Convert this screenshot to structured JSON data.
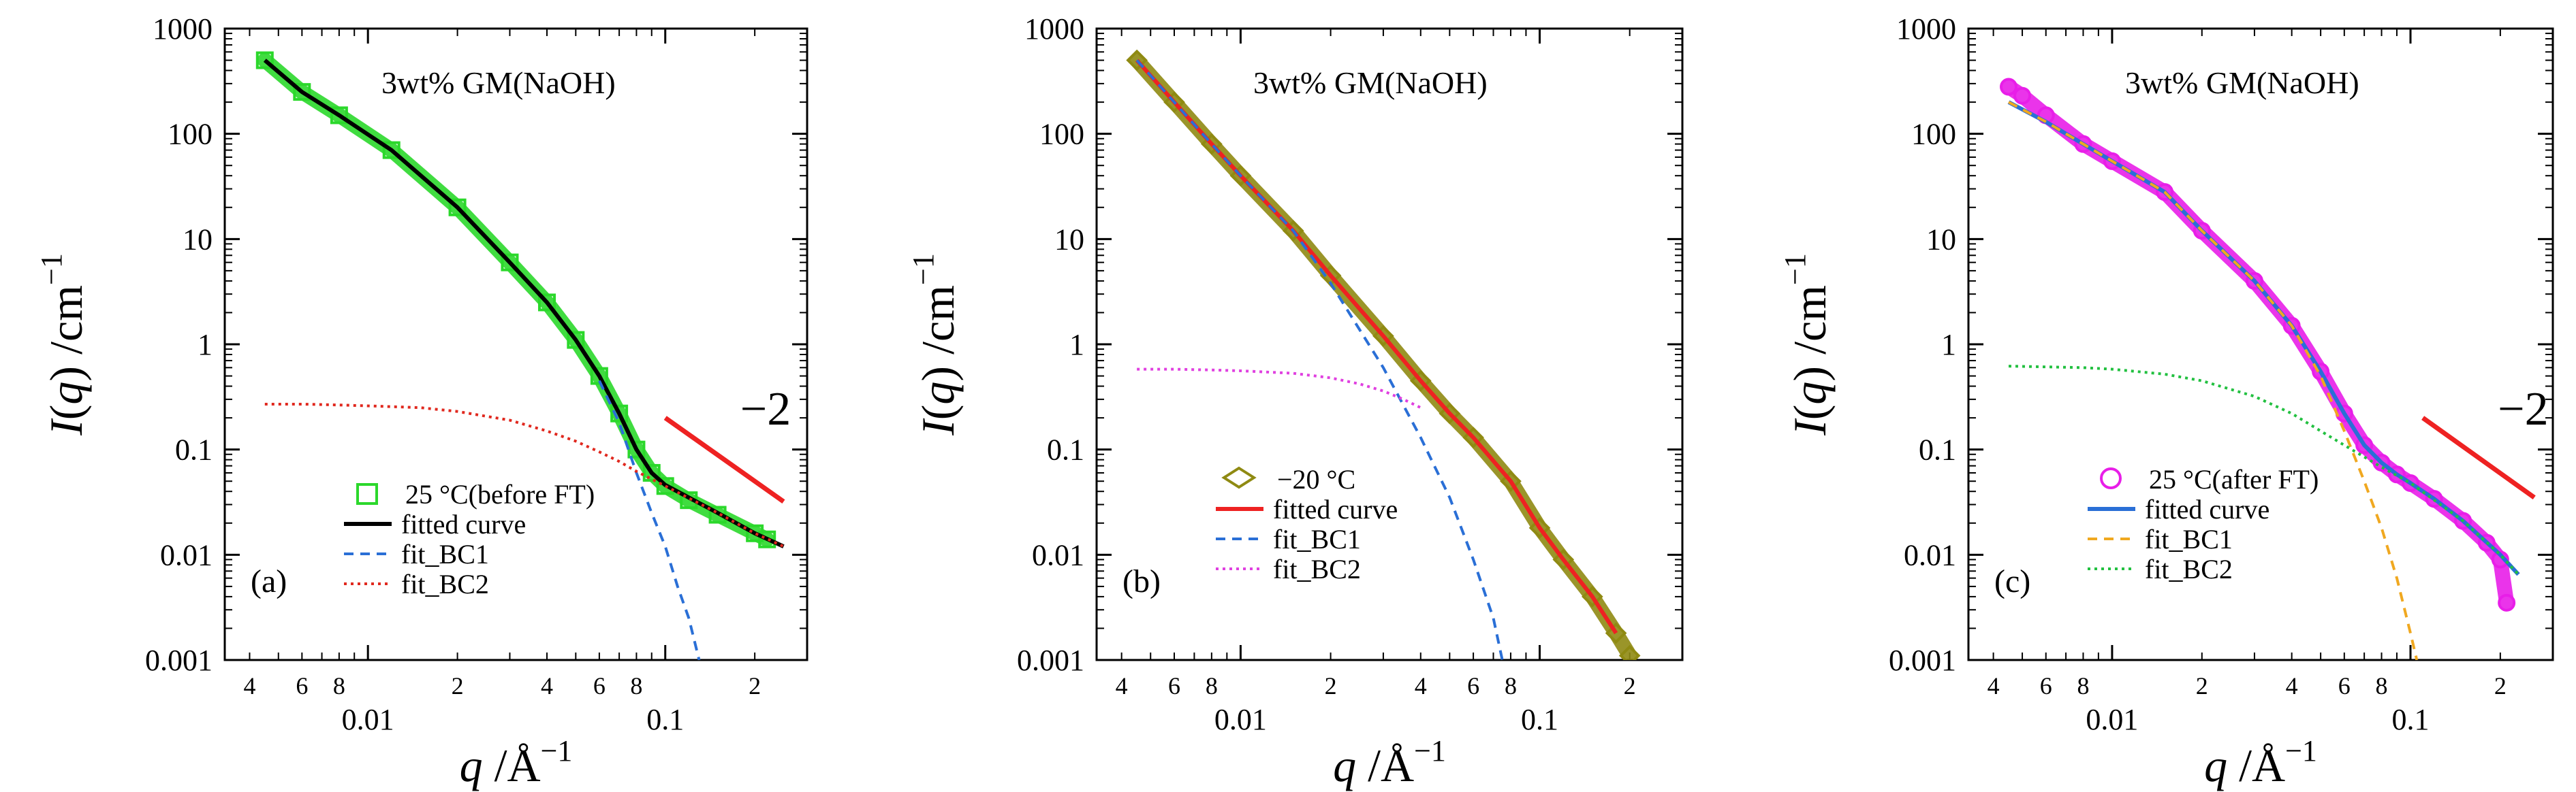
{
  "figure": {
    "panels": [
      {
        "letter": "(a)",
        "title": "3wt% GM(NaOH)",
        "ylabel_main": "I",
        "ylabel_q": "q",
        "ylabel_unit": " /cm",
        "ylabel_exp": "−1",
        "xlabel_q": "q",
        "xlabel_unit": " /Å",
        "xlabel_exp": "−1",
        "slope_label": "−2",
        "legend": [
          {
            "label": "25 °C(before FT)",
            "kind": "marker-square",
            "color": "#2bd82b"
          },
          {
            "label": "fitted curve",
            "kind": "line",
            "color": "#000000"
          },
          {
            "label": "fit_BC1",
            "kind": "dash",
            "color": "#2a6fd6"
          },
          {
            "label": "fit_BC2",
            "kind": "dot",
            "color": "#e0281e"
          }
        ]
      },
      {
        "letter": "(b)",
        "title": "3wt% GM(NaOH)",
        "ylabel_main": "I",
        "ylabel_q": "q",
        "ylabel_unit": " /cm",
        "ylabel_exp": "−1",
        "xlabel_q": "q",
        "xlabel_unit": " /Å",
        "xlabel_exp": "−1",
        "slope_label": "",
        "legend": [
          {
            "label": "−20 °C",
            "kind": "marker-diamond",
            "color": "#8f8a12"
          },
          {
            "label": "fitted curve",
            "kind": "line",
            "color": "#ee2222"
          },
          {
            "label": "fit_BC1",
            "kind": "dash",
            "color": "#2a6fd6"
          },
          {
            "label": "fit_BC2",
            "kind": "dot",
            "color": "#e040e0"
          }
        ]
      },
      {
        "letter": "(c)",
        "title": "3wt% GM(NaOH)",
        "ylabel_main": "I",
        "ylabel_q": "q",
        "ylabel_unit": " /cm",
        "ylabel_exp": "−1",
        "xlabel_q": "q",
        "xlabel_unit": " /Å",
        "xlabel_exp": "−1",
        "slope_label": "−2",
        "legend": [
          {
            "label": "25 °C(after FT)",
            "kind": "marker-circle",
            "color": "#e81ee8"
          },
          {
            "label": "fitted curve",
            "kind": "line",
            "color": "#2a6fd6"
          },
          {
            "label": "fit_BC1",
            "kind": "dash",
            "color": "#f0a820"
          },
          {
            "label": "fit_BC2",
            "kind": "dot",
            "color": "#22c040"
          }
        ]
      }
    ]
  },
  "chart_data": [
    {
      "type": "scatter",
      "title": "3wt% GM(NaOH)",
      "xlabel": "q /Å−1",
      "ylabel": "I(q) /cm−1",
      "xscale": "log",
      "yscale": "log",
      "xlim": [
        0.0033,
        0.3
      ],
      "ylim": [
        0.001,
        1000
      ],
      "x_major_ticks": [
        0.01,
        0.1
      ],
      "x_major_labels": [
        "0.01",
        "0.1"
      ],
      "x_minor_labels": [
        {
          "v": 0.004,
          "t": "4"
        },
        {
          "v": 0.006,
          "t": "6"
        },
        {
          "v": 0.008,
          "t": "8"
        },
        {
          "v": 0.02,
          "t": "2"
        },
        {
          "v": 0.04,
          "t": "4"
        },
        {
          "v": 0.06,
          "t": "6"
        },
        {
          "v": 0.08,
          "t": "8"
        },
        {
          "v": 0.2,
          "t": "2"
        }
      ],
      "y_ticks": [
        0.001,
        0.01,
        0.1,
        1,
        10,
        100,
        1000
      ],
      "y_tick_labels": [
        "0.001",
        "0.01",
        "0.1",
        "1",
        "10",
        "100",
        "1000"
      ],
      "series": [
        {
          "name": "25 °C(before FT)",
          "style": "marker-square",
          "color": "#2bd82b",
          "x": [
            0.0045,
            0.006,
            0.008,
            0.012,
            0.02,
            0.03,
            0.04,
            0.05,
            0.06,
            0.07,
            0.08,
            0.09,
            0.1,
            0.12,
            0.15,
            0.2,
            0.22
          ],
          "y": [
            500,
            250,
            150,
            70,
            20,
            6,
            2.5,
            1.1,
            0.5,
            0.22,
            0.1,
            0.06,
            0.045,
            0.033,
            0.024,
            0.016,
            0.014
          ]
        },
        {
          "name": "fitted curve",
          "style": "line",
          "color": "#000000",
          "x": [
            0.0045,
            0.006,
            0.008,
            0.012,
            0.02,
            0.03,
            0.04,
            0.05,
            0.06,
            0.07,
            0.08,
            0.09,
            0.1,
            0.15,
            0.2,
            0.25
          ],
          "y": [
            500,
            250,
            150,
            70,
            20,
            6,
            2.5,
            1.1,
            0.5,
            0.22,
            0.1,
            0.06,
            0.046,
            0.025,
            0.016,
            0.012
          ]
        },
        {
          "name": "fit_BC1",
          "style": "dash",
          "color": "#2a6fd6",
          "x": [
            0.06,
            0.07,
            0.08,
            0.09,
            0.1,
            0.11,
            0.12,
            0.13
          ],
          "y": [
            0.45,
            0.18,
            0.06,
            0.025,
            0.012,
            0.005,
            0.0025,
            0.001
          ]
        },
        {
          "name": "fit_BC2",
          "style": "dot",
          "color": "#e0281e",
          "x": [
            0.0045,
            0.006,
            0.008,
            0.01,
            0.015,
            0.02,
            0.03,
            0.04,
            0.05,
            0.06,
            0.07,
            0.08,
            0.1,
            0.15,
            0.2,
            0.25
          ],
          "y": [
            0.27,
            0.27,
            0.265,
            0.26,
            0.25,
            0.23,
            0.19,
            0.15,
            0.12,
            0.095,
            0.077,
            0.062,
            0.045,
            0.025,
            0.016,
            0.012
          ]
        },
        {
          "name": "slope −2 guide",
          "style": "slope",
          "color": "#ee2222",
          "x": [
            0.1,
            0.25
          ],
          "y": [
            0.2,
            0.032
          ]
        }
      ]
    },
    {
      "type": "scatter",
      "title": "3wt% GM(NaOH)",
      "xlabel": "q /Å−1",
      "ylabel": "I(q) /cm−1",
      "xscale": "log",
      "yscale": "log",
      "xlim": [
        0.0033,
        0.3
      ],
      "ylim": [
        0.001,
        1000
      ],
      "x_major_ticks": [
        0.01,
        0.1
      ],
      "x_major_labels": [
        "0.01",
        "0.1"
      ],
      "x_minor_labels": [
        {
          "v": 0.004,
          "t": "4"
        },
        {
          "v": 0.006,
          "t": "6"
        },
        {
          "v": 0.008,
          "t": "8"
        },
        {
          "v": 0.02,
          "t": "2"
        },
        {
          "v": 0.04,
          "t": "4"
        },
        {
          "v": 0.06,
          "t": "6"
        },
        {
          "v": 0.08,
          "t": "8"
        },
        {
          "v": 0.2,
          "t": "2"
        }
      ],
      "y_ticks": [
        0.001,
        0.01,
        0.1,
        1,
        10,
        100,
        1000
      ],
      "y_tick_labels": [
        "0.001",
        "0.01",
        "0.1",
        "1",
        "10",
        "100",
        "1000"
      ],
      "series": [
        {
          "name": "−20 °C",
          "style": "marker-diamond",
          "color": "#8f8a12",
          "x": [
            0.0045,
            0.006,
            0.008,
            0.01,
            0.015,
            0.02,
            0.03,
            0.04,
            0.05,
            0.06,
            0.08,
            0.1,
            0.12,
            0.15,
            0.18,
            0.2
          ],
          "y": [
            500,
            200,
            80,
            40,
            12,
            4.5,
            1.2,
            0.45,
            0.22,
            0.13,
            0.05,
            0.018,
            0.009,
            0.004,
            0.0018,
            0.0011
          ]
        },
        {
          "name": "fitted curve",
          "style": "line",
          "color": "#ee2222",
          "x": [
            0.0045,
            0.006,
            0.008,
            0.01,
            0.015,
            0.02,
            0.03,
            0.04,
            0.05,
            0.06,
            0.08,
            0.1,
            0.12,
            0.15,
            0.18
          ],
          "y": [
            500,
            200,
            80,
            40,
            12,
            4.5,
            1.2,
            0.45,
            0.22,
            0.13,
            0.05,
            0.018,
            0.009,
            0.004,
            0.0018
          ]
        },
        {
          "name": "fit_BC1",
          "style": "dash",
          "color": "#2a6fd6",
          "x": [
            0.0045,
            0.006,
            0.008,
            0.01,
            0.015,
            0.02,
            0.03,
            0.04,
            0.05,
            0.06,
            0.07,
            0.075
          ],
          "y": [
            500,
            200,
            80,
            40,
            12,
            3.8,
            0.6,
            0.13,
            0.035,
            0.009,
            0.0025,
            0.001
          ]
        },
        {
          "name": "fit_BC2",
          "style": "dot",
          "color": "#e040e0",
          "x": [
            0.0045,
            0.006,
            0.008,
            0.01,
            0.015,
            0.02,
            0.025,
            0.03,
            0.035,
            0.04
          ],
          "y": [
            0.58,
            0.58,
            0.57,
            0.56,
            0.53,
            0.48,
            0.42,
            0.36,
            0.3,
            0.25
          ]
        }
      ]
    },
    {
      "type": "scatter",
      "title": "3wt% GM(NaOH)",
      "xlabel": "q /Å−1",
      "ylabel": "I(q) /cm−1",
      "xscale": "log",
      "yscale": "log",
      "xlim": [
        0.0033,
        0.3
      ],
      "ylim": [
        0.001,
        1000
      ],
      "x_major_ticks": [
        0.01,
        0.1
      ],
      "x_major_labels": [
        "0.01",
        "0.1"
      ],
      "x_minor_labels": [
        {
          "v": 0.004,
          "t": "4"
        },
        {
          "v": 0.006,
          "t": "6"
        },
        {
          "v": 0.008,
          "t": "8"
        },
        {
          "v": 0.02,
          "t": "2"
        },
        {
          "v": 0.04,
          "t": "4"
        },
        {
          "v": 0.06,
          "t": "6"
        },
        {
          "v": 0.08,
          "t": "8"
        },
        {
          "v": 0.2,
          "t": "2"
        }
      ],
      "y_ticks": [
        0.001,
        0.01,
        0.1,
        1,
        10,
        100,
        1000
      ],
      "y_tick_labels": [
        "0.001",
        "0.01",
        "0.1",
        "1",
        "10",
        "100",
        "1000"
      ],
      "series": [
        {
          "name": "25 °C(after FT)",
          "style": "marker-circle",
          "color": "#e81ee8",
          "x": [
            0.0045,
            0.005,
            0.006,
            0.008,
            0.01,
            0.015,
            0.02,
            0.03,
            0.04,
            0.05,
            0.06,
            0.07,
            0.08,
            0.09,
            0.1,
            0.12,
            0.15,
            0.18,
            0.2,
            0.21
          ],
          "y": [
            280,
            230,
            150,
            80,
            55,
            28,
            12,
            4,
            1.5,
            0.55,
            0.22,
            0.11,
            0.075,
            0.058,
            0.048,
            0.034,
            0.021,
            0.013,
            0.009,
            0.0035
          ]
        },
        {
          "name": "fitted curve",
          "style": "line",
          "color": "#2a6fd6",
          "x": [
            0.0045,
            0.006,
            0.008,
            0.01,
            0.015,
            0.02,
            0.03,
            0.04,
            0.05,
            0.06,
            0.07,
            0.08,
            0.09,
            0.1,
            0.12,
            0.15,
            0.2,
            0.23
          ],
          "y": [
            200,
            130,
            80,
            55,
            28,
            12,
            4,
            1.5,
            0.55,
            0.22,
            0.11,
            0.075,
            0.058,
            0.048,
            0.034,
            0.021,
            0.01,
            0.0065
          ]
        },
        {
          "name": "fit_BC1",
          "style": "dash",
          "color": "#f0a820",
          "x": [
            0.0045,
            0.006,
            0.008,
            0.01,
            0.015,
            0.02,
            0.03,
            0.04,
            0.05,
            0.06,
            0.07,
            0.08,
            0.09,
            0.1,
            0.105
          ],
          "y": [
            200,
            130,
            80,
            55,
            28,
            12,
            4,
            1.5,
            0.5,
            0.15,
            0.05,
            0.018,
            0.006,
            0.0018,
            0.001
          ]
        },
        {
          "name": "fit_BC2",
          "style": "dot",
          "color": "#22c040",
          "x": [
            0.0045,
            0.006,
            0.008,
            0.01,
            0.015,
            0.02,
            0.03,
            0.04,
            0.05,
            0.06,
            0.07,
            0.08,
            0.1,
            0.15,
            0.2,
            0.23
          ],
          "y": [
            0.62,
            0.61,
            0.6,
            0.58,
            0.52,
            0.45,
            0.32,
            0.22,
            0.15,
            0.11,
            0.085,
            0.068,
            0.048,
            0.021,
            0.01,
            0.0065
          ]
        },
        {
          "name": "slope −2 guide",
          "style": "slope",
          "color": "#ee2222",
          "x": [
            0.11,
            0.26
          ],
          "y": [
            0.2,
            0.035
          ]
        }
      ]
    }
  ]
}
